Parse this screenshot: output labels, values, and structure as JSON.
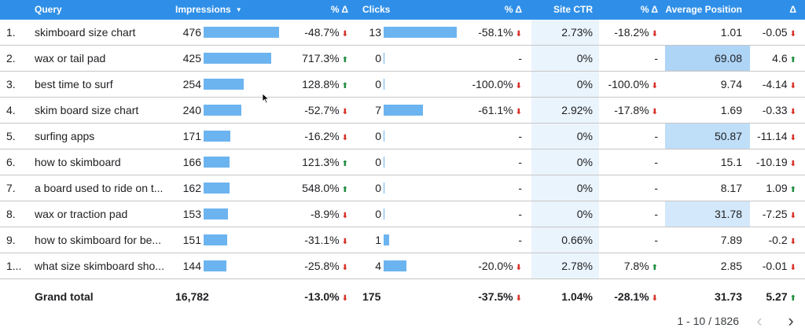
{
  "header": {
    "query": "Query",
    "impressions": "Impressions",
    "impressions_delta": "% Δ",
    "clicks": "Clicks",
    "clicks_delta": "% Δ",
    "ctr": "Site CTR",
    "ctr_delta": "% Δ",
    "avg_position": "Average Position",
    "avg_position_delta": "Δ"
  },
  "colors": {
    "header_bg": "#2f8fe8",
    "bar": "#6cb4f0",
    "down": "#d93025",
    "up": "#1e8e3e"
  },
  "rows": [
    {
      "num": "1.",
      "query": "skimboard size chart",
      "impressions": "476",
      "impressions_value": 476,
      "imp_delta": "-48.7%",
      "imp_dir": "down",
      "clicks": "13",
      "clicks_value": 13,
      "clk_delta": "-58.1%",
      "clk_dir": "down",
      "ctr": "2.73%",
      "ctr_delta": "-18.2%",
      "ctr_dir": "down",
      "pos": "1.01",
      "pos_value": 1.01,
      "pos_delta": "-0.05",
      "pos_dir": "down"
    },
    {
      "num": "2.",
      "query": "wax or tail pad",
      "impressions": "425",
      "impressions_value": 425,
      "imp_delta": "717.3%",
      "imp_dir": "up",
      "clicks": "0",
      "clicks_value": 0,
      "clk_delta": "-",
      "clk_dir": "",
      "ctr": "0%",
      "ctr_delta": "-",
      "ctr_dir": "",
      "pos": "69.08",
      "pos_value": 69.08,
      "pos_delta": "4.6",
      "pos_dir": "up"
    },
    {
      "num": "3.",
      "query": "best time to surf",
      "impressions": "254",
      "impressions_value": 254,
      "imp_delta": "128.8%",
      "imp_dir": "up",
      "clicks": "0",
      "clicks_value": 0,
      "clk_delta": "-100.0%",
      "clk_dir": "down",
      "ctr": "0%",
      "ctr_delta": "-100.0%",
      "ctr_dir": "down",
      "pos": "9.74",
      "pos_value": 9.74,
      "pos_delta": "-4.14",
      "pos_dir": "down"
    },
    {
      "num": "4.",
      "query": "skim board size chart",
      "impressions": "240",
      "impressions_value": 240,
      "imp_delta": "-52.7%",
      "imp_dir": "down",
      "clicks": "7",
      "clicks_value": 7,
      "clk_delta": "-61.1%",
      "clk_dir": "down",
      "ctr": "2.92%",
      "ctr_delta": "-17.8%",
      "ctr_dir": "down",
      "pos": "1.69",
      "pos_value": 1.69,
      "pos_delta": "-0.33",
      "pos_dir": "down"
    },
    {
      "num": "5.",
      "query": "surfing apps",
      "impressions": "171",
      "impressions_value": 171,
      "imp_delta": "-16.2%",
      "imp_dir": "down",
      "clicks": "0",
      "clicks_value": 0,
      "clk_delta": "-",
      "clk_dir": "",
      "ctr": "0%",
      "ctr_delta": "-",
      "ctr_dir": "",
      "pos": "50.87",
      "pos_value": 50.87,
      "pos_delta": "-11.14",
      "pos_dir": "down"
    },
    {
      "num": "6.",
      "query": "how to skimboard",
      "impressions": "166",
      "impressions_value": 166,
      "imp_delta": "121.3%",
      "imp_dir": "up",
      "clicks": "0",
      "clicks_value": 0,
      "clk_delta": "-",
      "clk_dir": "",
      "ctr": "0%",
      "ctr_delta": "-",
      "ctr_dir": "",
      "pos": "15.1",
      "pos_value": 15.1,
      "pos_delta": "-10.19",
      "pos_dir": "down"
    },
    {
      "num": "7.",
      "query": "a board used to ride on t...",
      "impressions": "162",
      "impressions_value": 162,
      "imp_delta": "548.0%",
      "imp_dir": "up",
      "clicks": "0",
      "clicks_value": 0,
      "clk_delta": "-",
      "clk_dir": "",
      "ctr": "0%",
      "ctr_delta": "-",
      "ctr_dir": "",
      "pos": "8.17",
      "pos_value": 8.17,
      "pos_delta": "1.09",
      "pos_dir": "up"
    },
    {
      "num": "8.",
      "query": "wax or traction pad",
      "impressions": "153",
      "impressions_value": 153,
      "imp_delta": "-8.9%",
      "imp_dir": "down",
      "clicks": "0",
      "clicks_value": 0,
      "clk_delta": "-",
      "clk_dir": "",
      "ctr": "0%",
      "ctr_delta": "-",
      "ctr_dir": "",
      "pos": "31.78",
      "pos_value": 31.78,
      "pos_delta": "-7.25",
      "pos_dir": "down"
    },
    {
      "num": "9.",
      "query": "how to skimboard for be...",
      "impressions": "151",
      "impressions_value": 151,
      "imp_delta": "-31.1%",
      "imp_dir": "down",
      "clicks": "1",
      "clicks_value": 1,
      "clk_delta": "-",
      "clk_dir": "",
      "ctr": "0.66%",
      "ctr_delta": "-",
      "ctr_dir": "",
      "pos": "7.89",
      "pos_value": 7.89,
      "pos_delta": "-0.2",
      "pos_dir": "down"
    },
    {
      "num": "1...",
      "query": "what size skimboard sho...",
      "impressions": "144",
      "impressions_value": 144,
      "imp_delta": "-25.8%",
      "imp_dir": "down",
      "clicks": "4",
      "clicks_value": 4,
      "clk_delta": "-20.0%",
      "clk_dir": "down",
      "ctr": "2.78%",
      "ctr_delta": "7.8%",
      "ctr_dir": "up",
      "pos": "2.85",
      "pos_value": 2.85,
      "pos_delta": "-0.01",
      "pos_dir": "down"
    }
  ],
  "total": {
    "label": "Grand total",
    "impressions": "16,782",
    "imp_delta": "-13.0%",
    "imp_dir": "down",
    "clicks": "175",
    "clk_delta": "-37.5%",
    "clk_dir": "down",
    "ctr": "1.04%",
    "ctr_delta": "-28.1%",
    "ctr_dir": "down",
    "pos": "31.73",
    "pos_delta": "5.27",
    "pos_dir": "up"
  },
  "pager": {
    "range": "1 - 10 / 1826",
    "prev_icon": "chevron-left-icon",
    "next_icon": "chevron-right-icon"
  }
}
